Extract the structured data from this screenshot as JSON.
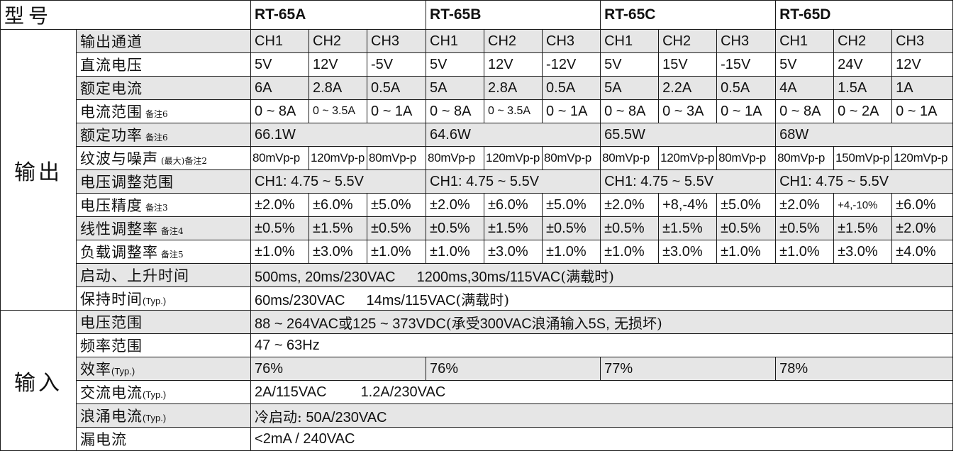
{
  "header": {
    "title": "型号",
    "models": [
      "RT-65A",
      "RT-65B",
      "RT-65C",
      "RT-65D"
    ]
  },
  "output": {
    "category": "输出",
    "channels": {
      "label": "输出通道",
      "values": [
        "CH1",
        "CH2",
        "CH3",
        "CH1",
        "CH2",
        "CH3",
        "CH1",
        "CH2",
        "CH3",
        "CH1",
        "CH2",
        "CH3"
      ]
    },
    "dc_voltage": {
      "label": "直流电压",
      "values": [
        "5V",
        "12V",
        "-5V",
        "5V",
        "12V",
        "-12V",
        "5V",
        "15V",
        "-15V",
        "5V",
        "24V",
        "12V"
      ]
    },
    "rated_current": {
      "label": "额定电流",
      "values": [
        "6A",
        "2.8A",
        "0.5A",
        "5A",
        "2.8A",
        "0.5A",
        "5A",
        "2.2A",
        "0.5A",
        "4A",
        "1.5A",
        "1A"
      ]
    },
    "current_range": {
      "label": "电流范围",
      "note": "备注6",
      "values": [
        "0 ~ 8A",
        "0 ~ 3.5A",
        "0 ~ 1A",
        "0 ~ 8A",
        "0 ~ 3.5A",
        "0 ~ 1A",
        "0 ~ 8A",
        "0 ~ 3A",
        "0 ~ 1A",
        "0 ~ 8A",
        "0 ~ 2A",
        "0 ~ 1A"
      ]
    },
    "rated_power": {
      "label": "额定功率",
      "note": "备注6",
      "values": [
        "66.1W",
        "64.6W",
        "65.5W",
        "68W"
      ]
    },
    "ripple_noise": {
      "label": "纹波与噪声",
      "qualifier": "(最大)",
      "note": "备注2",
      "values": [
        "80mVp-p",
        "120mVp-p",
        "80mVp-p",
        "80mVp-p",
        "120mVp-p",
        "80mVp-p",
        "80mVp-p",
        "120mVp-p",
        "80mVp-p",
        "80mVp-p",
        "150mVp-p",
        "120mVp-p"
      ]
    },
    "voltage_adj": {
      "label": "电压调整范围",
      "values": [
        "CH1: 4.75 ~ 5.5V",
        "CH1: 4.75 ~ 5.5V",
        "CH1: 4.75 ~ 5.5V",
        "CH1: 4.75 ~ 5.5V"
      ]
    },
    "voltage_tolerance": {
      "label": "电压精度",
      "note": "备注3",
      "values": [
        "±2.0%",
        "±6.0%",
        "±5.0%",
        "±2.0%",
        "±6.0%",
        "±5.0%",
        "±2.0%",
        "+8,-4%",
        "±5.0%",
        "±2.0%",
        "+4,-10%",
        "±6.0%"
      ]
    },
    "line_regulation": {
      "label": "线性调整率",
      "note": "备注4",
      "values": [
        "±0.5%",
        "±1.5%",
        "±0.5%",
        "±0.5%",
        "±1.5%",
        "±0.5%",
        "±0.5%",
        "±1.5%",
        "±0.5%",
        "±0.5%",
        "±1.5%",
        "±2.0%"
      ]
    },
    "load_regulation": {
      "label": "负载调整率",
      "note": "备注5",
      "values": [
        "±1.0%",
        "±3.0%",
        "±1.0%",
        "±1.0%",
        "±3.0%",
        "±1.0%",
        "±1.0%",
        "±3.0%",
        "±1.0%",
        "±1.0%",
        "±3.0%",
        "±4.0%"
      ]
    },
    "setup_rise": {
      "label": "启动、上升时间",
      "value_a": "500ms, 20ms/230VAC",
      "value_b": "1200ms,30ms/115VAC",
      "value_c": "(满载时)"
    },
    "hold_up": {
      "label": "保持时间",
      "typ": "(Typ.)",
      "value_a": "60ms/230VAC",
      "value_b": "14ms/115VAC",
      "value_c": "(满载时)"
    }
  },
  "input": {
    "category": "输入",
    "voltage_range": {
      "label": "电压范围",
      "value_a": "88 ~ 264VAC",
      "value_b": "或",
      "value_c": "125 ~ 373VDC",
      "value_d": "(承受",
      "value_e": "300VAC",
      "value_f": "浪涌输入",
      "value_g": "5S,",
      "value_h": " 无损坏)"
    },
    "frequency": {
      "label": "频率范围",
      "value": "47 ~ 63Hz"
    },
    "efficiency": {
      "label": "效率",
      "typ": "(Typ.)",
      "values": [
        "76%",
        "76%",
        "77%",
        "78%"
      ]
    },
    "ac_current": {
      "label": "交流电流",
      "typ": "(Typ.)",
      "value_a": "2A/115VAC",
      "value_b": "1.2A/230VAC"
    },
    "inrush": {
      "label": "浪涌电流",
      "typ": "(Typ.)",
      "value_a": "冷启动:",
      "value_b": "50A/230VAC"
    },
    "leakage": {
      "label": "漏电流",
      "value": "<2mA / 240VAC"
    }
  }
}
